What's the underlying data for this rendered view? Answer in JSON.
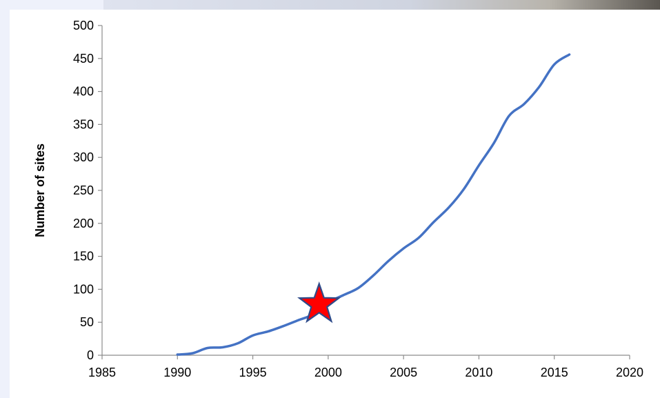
{
  "chart_data": {
    "type": "line",
    "title": "",
    "xlabel": "",
    "ylabel": "Number of sites",
    "xlim": [
      1985,
      2020
    ],
    "ylim": [
      0,
      500
    ],
    "x_ticks": [
      "1985",
      "1990",
      "1995",
      "2000",
      "2005",
      "2010",
      "2015",
      "2020"
    ],
    "y_ticks": [
      "0",
      "50",
      "100",
      "150",
      "200",
      "250",
      "300",
      "350",
      "400",
      "450",
      "500"
    ],
    "grid": false,
    "legend": "none",
    "series": [
      {
        "color": "#4472c4",
        "points": [
          [
            1990,
            1
          ],
          [
            1991,
            3
          ],
          [
            1992,
            11
          ],
          [
            1993,
            12
          ],
          [
            1994,
            18
          ],
          [
            1995,
            30
          ],
          [
            1996,
            36
          ],
          [
            1997,
            44
          ],
          [
            1998,
            53
          ],
          [
            1999,
            62
          ],
          [
            2000,
            80
          ],
          [
            2001,
            91
          ],
          [
            2002,
            102
          ],
          [
            2003,
            121
          ],
          [
            2004,
            143
          ],
          [
            2005,
            162
          ],
          [
            2006,
            178
          ],
          [
            2007,
            202
          ],
          [
            2008,
            224
          ],
          [
            2009,
            252
          ],
          [
            2010,
            288
          ],
          [
            2011,
            322
          ],
          [
            2012,
            363
          ],
          [
            2013,
            381
          ],
          [
            2014,
            407
          ],
          [
            2015,
            441
          ],
          [
            2016,
            456
          ]
        ]
      }
    ],
    "annotations": [
      {
        "shape": "star",
        "x": 1999.4,
        "y": 77,
        "fill": "#ff0000",
        "stroke": "#2f4b8a"
      }
    ]
  }
}
